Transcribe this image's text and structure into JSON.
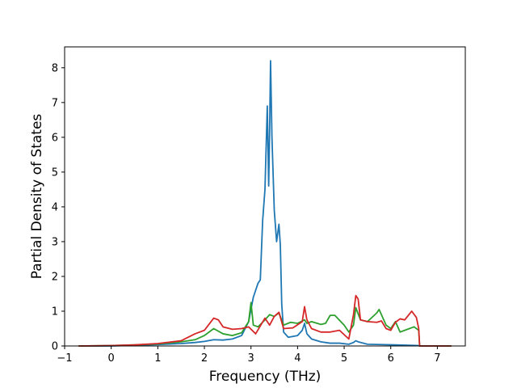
{
  "chart_data": {
    "type": "line",
    "title": "",
    "xlabel": "Frequency (THz)",
    "ylabel": "Partial Density of States",
    "xlim": [
      -1.0,
      7.6
    ],
    "ylim": [
      0,
      8.6
    ],
    "xticks": [
      -1,
      0,
      1,
      2,
      3,
      4,
      5,
      6,
      7
    ],
    "yticks": [
      0,
      1,
      2,
      3,
      4,
      5,
      6,
      7,
      8
    ],
    "grid": false,
    "legend": "none",
    "series": [
      {
        "color": "#1f77b4",
        "x": [
          -0.7,
          0.0,
          0.5,
          1.0,
          1.5,
          1.8,
          2.0,
          2.2,
          2.4,
          2.6,
          2.8,
          2.95,
          3.05,
          3.15,
          3.2,
          3.25,
          3.3,
          3.35,
          3.38,
          3.4,
          3.42,
          3.45,
          3.5,
          3.55,
          3.6,
          3.63,
          3.66,
          3.7,
          3.8,
          4.0,
          4.1,
          4.15,
          4.2,
          4.3,
          4.5,
          4.7,
          4.9,
          5.1,
          5.2,
          5.25,
          5.3,
          5.5,
          5.8,
          6.1,
          6.4,
          6.6,
          6.62,
          7.3
        ],
        "y": [
          0.0,
          0.0,
          0.02,
          0.04,
          0.07,
          0.1,
          0.13,
          0.18,
          0.17,
          0.2,
          0.3,
          0.7,
          1.4,
          1.8,
          1.9,
          3.6,
          4.5,
          6.9,
          4.6,
          6.2,
          8.2,
          6.0,
          3.9,
          3.0,
          3.5,
          2.9,
          1.2,
          0.4,
          0.25,
          0.3,
          0.45,
          0.65,
          0.35,
          0.2,
          0.12,
          0.08,
          0.08,
          0.05,
          0.1,
          0.15,
          0.12,
          0.05,
          0.04,
          0.03,
          0.02,
          0.01,
          0.0,
          0.0
        ]
      },
      {
        "color": "#2ca02c",
        "x": [
          -0.7,
          0.0,
          0.5,
          1.0,
          1.5,
          1.8,
          2.0,
          2.2,
          2.4,
          2.6,
          2.8,
          2.95,
          3.0,
          3.05,
          3.15,
          3.3,
          3.4,
          3.5,
          3.6,
          3.7,
          3.85,
          4.0,
          4.15,
          4.2,
          4.3,
          4.5,
          4.6,
          4.7,
          4.8,
          5.0,
          5.1,
          5.2,
          5.25,
          5.35,
          5.5,
          5.7,
          5.75,
          5.9,
          6.0,
          6.1,
          6.2,
          6.3,
          6.4,
          6.5,
          6.6,
          6.62,
          7.3
        ],
        "y": [
          0.0,
          0.01,
          0.03,
          0.06,
          0.12,
          0.18,
          0.3,
          0.5,
          0.35,
          0.3,
          0.38,
          0.7,
          1.25,
          0.6,
          0.55,
          0.75,
          0.9,
          0.85,
          0.95,
          0.6,
          0.68,
          0.65,
          0.75,
          0.65,
          0.7,
          0.62,
          0.65,
          0.88,
          0.88,
          0.6,
          0.4,
          0.6,
          1.1,
          0.75,
          0.7,
          0.95,
          1.05,
          0.6,
          0.5,
          0.7,
          0.4,
          0.45,
          0.5,
          0.55,
          0.45,
          0.0,
          0.0
        ]
      },
      {
        "color": "#d62728",
        "x": [
          -0.7,
          0.0,
          0.5,
          1.0,
          1.5,
          1.8,
          2.0,
          2.2,
          2.3,
          2.4,
          2.6,
          2.8,
          2.95,
          3.1,
          3.3,
          3.4,
          3.5,
          3.6,
          3.7,
          3.9,
          4.1,
          4.15,
          4.2,
          4.3,
          4.5,
          4.7,
          4.9,
          5.1,
          5.2,
          5.25,
          5.3,
          5.35,
          5.5,
          5.7,
          5.8,
          5.9,
          6.0,
          6.1,
          6.2,
          6.3,
          6.45,
          6.55,
          6.6,
          6.62,
          7.3
        ],
        "y": [
          0.0,
          0.01,
          0.03,
          0.07,
          0.15,
          0.35,
          0.45,
          0.8,
          0.75,
          0.55,
          0.48,
          0.5,
          0.55,
          0.35,
          0.8,
          0.6,
          0.85,
          0.97,
          0.5,
          0.52,
          0.7,
          1.13,
          0.75,
          0.5,
          0.4,
          0.4,
          0.45,
          0.2,
          0.9,
          1.45,
          1.35,
          0.75,
          0.7,
          0.68,
          0.72,
          0.5,
          0.45,
          0.68,
          0.78,
          0.75,
          1.0,
          0.82,
          0.5,
          0.0,
          0.0
        ]
      }
    ]
  }
}
